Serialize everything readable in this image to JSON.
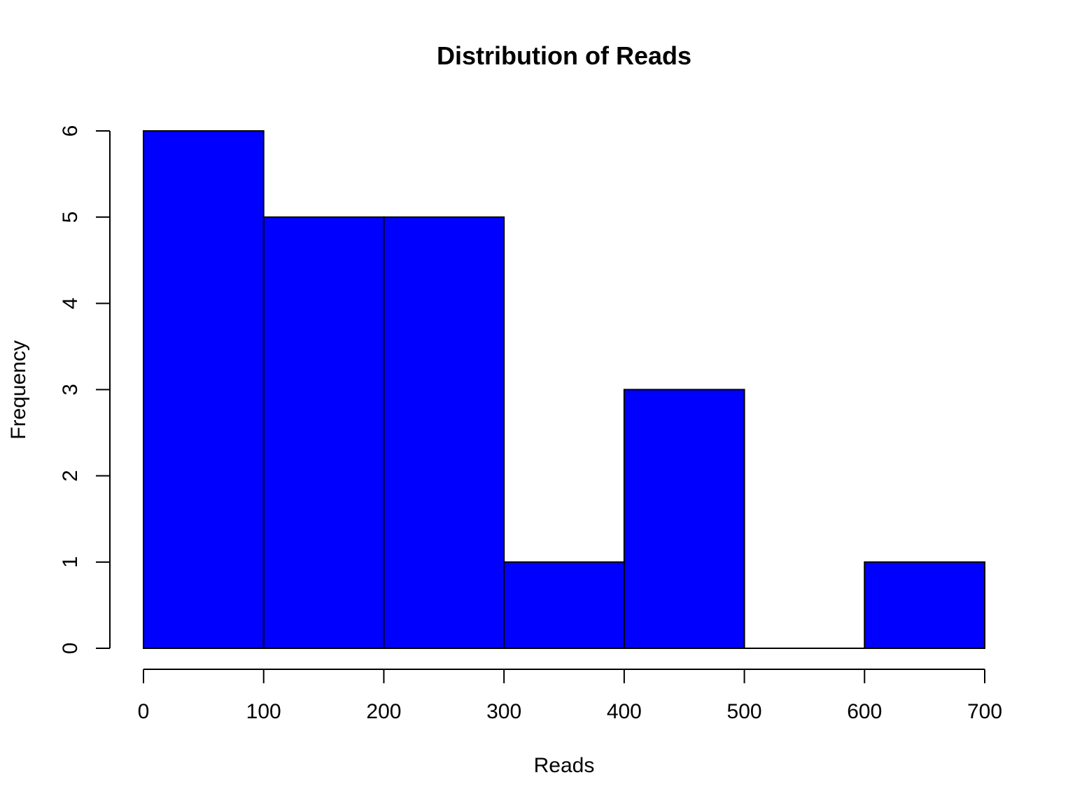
{
  "chart_data": {
    "type": "bar",
    "title": "Distribution of Reads",
    "xlabel": "Reads",
    "ylabel": "Frequency",
    "bins": [
      {
        "start": 0,
        "end": 100,
        "count": 6
      },
      {
        "start": 100,
        "end": 200,
        "count": 5
      },
      {
        "start": 200,
        "end": 300,
        "count": 5
      },
      {
        "start": 300,
        "end": 400,
        "count": 1
      },
      {
        "start": 400,
        "end": 500,
        "count": 3
      },
      {
        "start": 500,
        "end": 600,
        "count": 0
      },
      {
        "start": 600,
        "end": 700,
        "count": 1
      }
    ],
    "xlim": [
      0,
      700
    ],
    "ylim": [
      0,
      6
    ],
    "x_ticks": [
      "0",
      "100",
      "200",
      "300",
      "400",
      "500",
      "600",
      "700"
    ],
    "y_ticks": [
      "0",
      "1",
      "2",
      "3",
      "4",
      "5",
      "6"
    ],
    "bar_color": "#0000ff",
    "edge_color": "#000000",
    "grid": false,
    "legend": false
  }
}
